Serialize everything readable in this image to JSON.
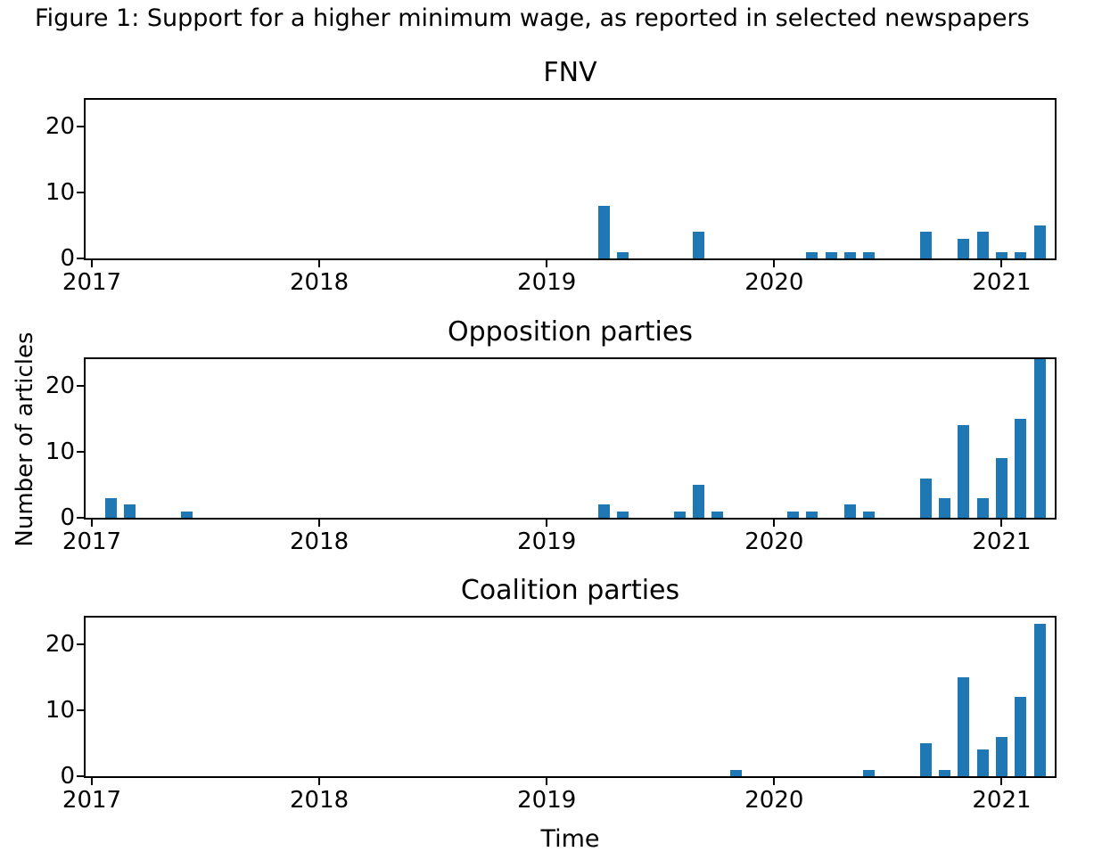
{
  "figure": {
    "title": "Figure 1: Support for a higher minimum wage, as reported in selected newspapers",
    "xlabel": "Time",
    "ylabel": "Number of articles",
    "bar_color": "#1f77b4",
    "background_color": "#ffffff"
  },
  "chart_data": [
    {
      "type": "bar",
      "title": "FNV",
      "x_tick_labels": [
        "2017",
        "2018",
        "2019",
        "2020",
        "2021"
      ],
      "y_ticks": [
        0,
        10,
        20
      ],
      "ylim": [
        0,
        24
      ],
      "grid": false,
      "legend": null,
      "points": [
        [
          "2019-04",
          8
        ],
        [
          "2019-05",
          1
        ],
        [
          "2019-09",
          4
        ],
        [
          "2020-03",
          1
        ],
        [
          "2020-04",
          1
        ],
        [
          "2020-05",
          1
        ],
        [
          "2020-06",
          1
        ],
        [
          "2020-09",
          4
        ],
        [
          "2020-11",
          3
        ],
        [
          "2020-12",
          4
        ],
        [
          "2021-01",
          1
        ],
        [
          "2021-02",
          1
        ],
        [
          "2021-03",
          5
        ]
      ]
    },
    {
      "type": "bar",
      "title": "Opposition parties",
      "x_tick_labels": [
        "2017",
        "2018",
        "2019",
        "2020",
        "2021"
      ],
      "y_ticks": [
        0,
        10,
        20
      ],
      "ylim": [
        0,
        24
      ],
      "grid": false,
      "legend": null,
      "points": [
        [
          "2017-02",
          3
        ],
        [
          "2017-03",
          2
        ],
        [
          "2017-06",
          1
        ],
        [
          "2019-04",
          2
        ],
        [
          "2019-05",
          1
        ],
        [
          "2019-08",
          1
        ],
        [
          "2019-09",
          5
        ],
        [
          "2019-10",
          1
        ],
        [
          "2020-02",
          1
        ],
        [
          "2020-03",
          1
        ],
        [
          "2020-05",
          2
        ],
        [
          "2020-06",
          1
        ],
        [
          "2020-09",
          6
        ],
        [
          "2020-10",
          3
        ],
        [
          "2020-11",
          14
        ],
        [
          "2020-12",
          3
        ],
        [
          "2021-01",
          9
        ],
        [
          "2021-02",
          15
        ],
        [
          "2021-03",
          24
        ]
      ]
    },
    {
      "type": "bar",
      "title": "Coalition parties",
      "x_tick_labels": [
        "2017",
        "2018",
        "2019",
        "2020",
        "2021"
      ],
      "y_ticks": [
        0,
        10,
        20
      ],
      "ylim": [
        0,
        24
      ],
      "grid": false,
      "legend": null,
      "points": [
        [
          "2019-11",
          1
        ],
        [
          "2020-06",
          1
        ],
        [
          "2020-09",
          5
        ],
        [
          "2020-10",
          1
        ],
        [
          "2020-11",
          15
        ],
        [
          "2020-12",
          4
        ],
        [
          "2021-01",
          6
        ],
        [
          "2021-02",
          12
        ],
        [
          "2021-03",
          23
        ]
      ]
    }
  ]
}
